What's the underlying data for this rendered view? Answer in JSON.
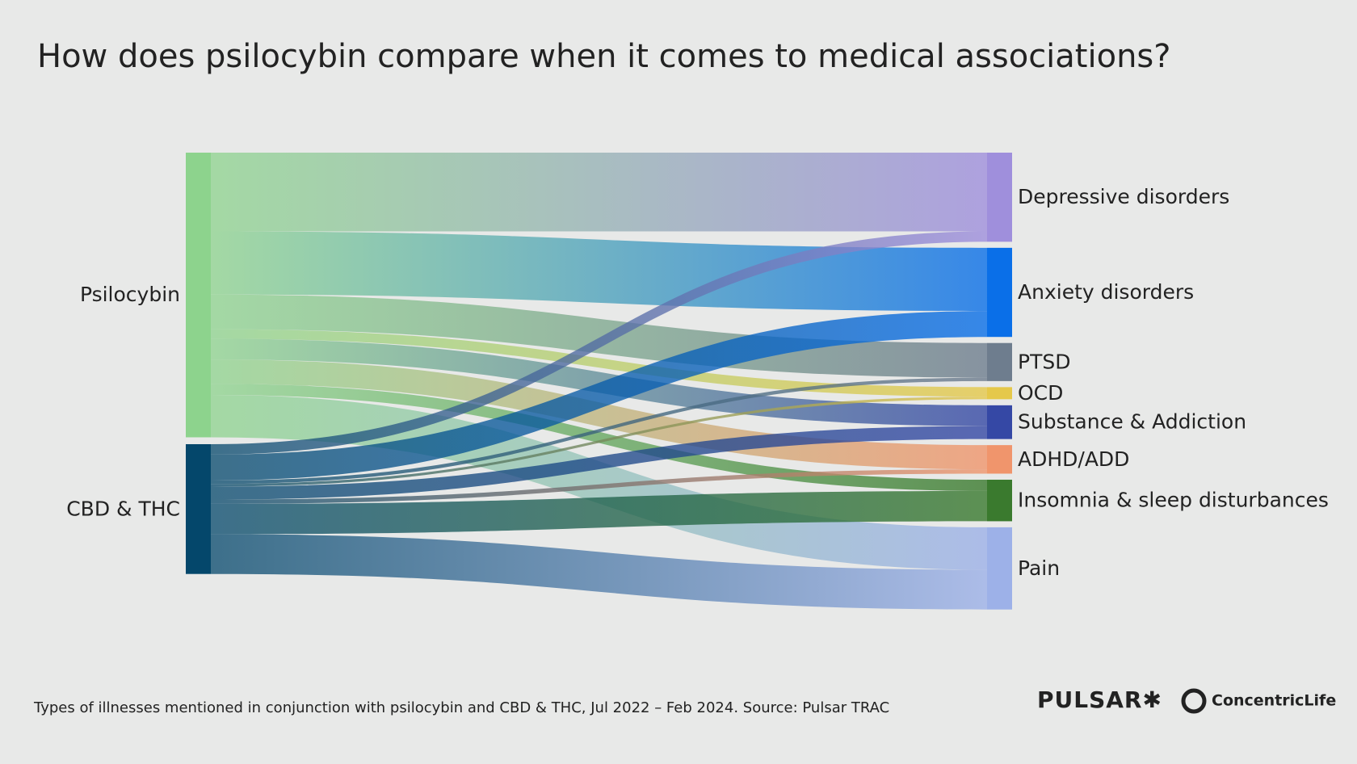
{
  "chart_data": {
    "type": "sankey",
    "title": "How does psilocybin compare when it comes to medical associations?",
    "footnote": "Types of illnesses mentioned in conjunction with psilocybin and CBD & THC, Jul 2022 – Feb 2024. Source: Pulsar TRAC",
    "logos": [
      "PULSAR✱",
      "ConcentricLife"
    ],
    "nodes": [
      {
        "name": "Psilocybin",
        "color": "#8dd38d",
        "column": 0
      },
      {
        "name": "CBD & THC",
        "color": "#04476b",
        "column": 0
      },
      {
        "name": "Depressive disorders",
        "color": "#9f8fdc",
        "column": 1
      },
      {
        "name": "Anxiety disorders",
        "color": "#0a6fe8",
        "column": 1
      },
      {
        "name": "PTSD",
        "color": "#6e7d8e",
        "column": 1
      },
      {
        "name": "OCD",
        "color": "#e5c84a",
        "column": 1
      },
      {
        "name": "Substance & Addiction",
        "color": "#3548a5",
        "column": 1
      },
      {
        "name": "ADHD/ADD",
        "color": "#f0956c",
        "column": 1
      },
      {
        "name": "Insomnia & sleep disturbances",
        "color": "#3a7a2e",
        "column": 1
      },
      {
        "name": "Pain",
        "color": "#9db1e8",
        "column": 1
      }
    ],
    "links": [
      {
        "source": 0,
        "target": 2,
        "value": 91
      },
      {
        "source": 0,
        "target": 3,
        "value": 73
      },
      {
        "source": 0,
        "target": 4,
        "value": 40
      },
      {
        "source": 0,
        "target": 5,
        "value": 11
      },
      {
        "source": 0,
        "target": 6,
        "value": 24
      },
      {
        "source": 0,
        "target": 7,
        "value": 28
      },
      {
        "source": 0,
        "target": 8,
        "value": 13
      },
      {
        "source": 0,
        "target": 9,
        "value": 49
      },
      {
        "source": 1,
        "target": 2,
        "value": 12
      },
      {
        "source": 1,
        "target": 3,
        "value": 30
      },
      {
        "source": 1,
        "target": 4,
        "value": 4
      },
      {
        "source": 1,
        "target": 5,
        "value": 3
      },
      {
        "source": 1,
        "target": 6,
        "value": 15
      },
      {
        "source": 1,
        "target": 7,
        "value": 5
      },
      {
        "source": 1,
        "target": 8,
        "value": 35
      },
      {
        "source": 1,
        "target": 9,
        "value": 46
      }
    ]
  }
}
